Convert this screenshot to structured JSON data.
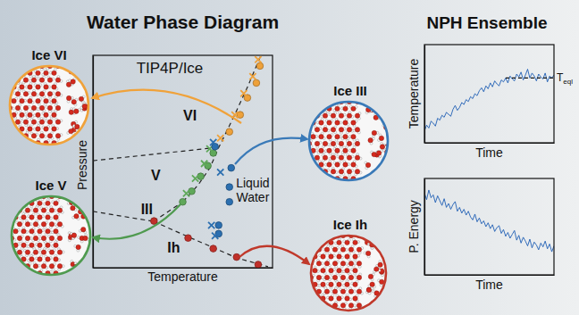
{
  "chart_data": [
    {
      "type": "scatter",
      "title": "Water Phase Diagram",
      "subtitle": "TIP4P/Ice",
      "x_label": "Temperature",
      "y_label": "Pressure",
      "xlim": [
        0,
        100
      ],
      "ylim": [
        0,
        100
      ],
      "xticks": [],
      "yticks": [],
      "tick_labels": false,
      "series": [
        {
          "type": "line",
          "line_style": "dashed",
          "color": "#222222",
          "x": [
            50.2,
            58.7,
            65.2,
            70.1,
            78.6,
            86.6,
            93.5
          ],
          "values": [
            31.1,
            39.1,
            47.1,
            56.7,
            71.4,
            86.1,
            100
          ]
        },
        {
          "type": "line",
          "line_style": "dashed",
          "color": "#222222",
          "x": [
            33.8,
            50.2
          ],
          "values": [
            21.8,
            31.1
          ]
        },
        {
          "type": "line",
          "line_style": "dashed",
          "color": "#222222",
          "x": [
            33.8,
            53.7,
            67.7,
            80.1,
            97.5
          ],
          "values": [
            21.8,
            14.3,
            9.2,
            4.6,
            0.5
          ]
        },
        {
          "type": "line",
          "line_style": "dashed",
          "color": "#222222",
          "x": [
            0,
            70.1
          ],
          "values": [
            50.4,
            56.7
          ]
        },
        {
          "type": "line",
          "line_style": "dashed",
          "color": "#222222",
          "x": [
            0,
            33.8
          ],
          "values": [
            26.5,
            21.8
          ]
        },
        {
          "type": "scatter",
          "marker": "circle",
          "color": "#eea13a",
          "x": [
            93,
            91,
            86,
            82,
            76
          ],
          "values": [
            95,
            87,
            80,
            72,
            64
          ]
        },
        {
          "type": "scatter",
          "marker": "cross",
          "color": "#eea13a",
          "x": [
            92,
            89,
            84,
            79,
            71
          ],
          "values": [
            98,
            90,
            82,
            72,
            61
          ]
        },
        {
          "type": "scatter",
          "marker": "circle",
          "color": "#5fa85a",
          "x": [
            67,
            64,
            60,
            55,
            50
          ],
          "values": [
            54,
            48,
            43,
            36,
            31
          ]
        },
        {
          "type": "scatter",
          "marker": "cross",
          "color": "#5fa85a",
          "x": [
            65,
            62,
            57,
            52
          ],
          "values": [
            56,
            49,
            42,
            35
          ]
        },
        {
          "type": "scatter",
          "marker": "circle",
          "color": "#2b6fb0",
          "x": [
            68,
            77,
            76,
            76,
            70,
            70
          ],
          "values": [
            57,
            47,
            38,
            31,
            20,
            16
          ]
        },
        {
          "type": "scatter",
          "marker": "cross",
          "color": "#2b6fb0",
          "x": [
            67,
            71,
            66,
            68
          ],
          "values": [
            59,
            45,
            20,
            15
          ]
        },
        {
          "type": "scatter",
          "marker": "circle",
          "color": "#c0302a",
          "x": [
            34,
            53,
            67,
            80,
            92
          ],
          "values": [
            22,
            14,
            9,
            5,
            1.5
          ]
        }
      ],
      "region_labels": [
        {
          "text": "VI",
          "x": 54,
          "y": 71
        },
        {
          "text": "V",
          "x": 35,
          "y": 43
        },
        {
          "text": "III",
          "x": 30,
          "y": 27
        },
        {
          "text": "Ih",
          "x": 45,
          "y": 9
        }
      ],
      "annotations": [
        {
          "text": "Liquid Water",
          "x": 89,
          "y": 38
        }
      ],
      "insets": [
        {
          "label": "Ice VI",
          "color": "#f0a23a"
        },
        {
          "label": "Ice V",
          "color": "#4f9a4f"
        },
        {
          "label": "Ice III",
          "color": "#3a7ab8"
        },
        {
          "label": "Ice Ih",
          "color": "#c0392b"
        }
      ]
    },
    {
      "type": "line",
      "title": "NPH Ensemble",
      "x_label": "Time",
      "y_label": "Temperature",
      "xlim": [
        0,
        59
      ],
      "ylim": [
        0,
        100
      ],
      "xticks": [],
      "yticks": [],
      "tick_labels": false,
      "series": [
        {
          "color": "#1f5fb4",
          "x": [
            0,
            1,
            2,
            3,
            4,
            5,
            6,
            7,
            8,
            9,
            10,
            11,
            12,
            13,
            14,
            15,
            16,
            17,
            18,
            19,
            20,
            21,
            22,
            23,
            24,
            25,
            26,
            27,
            28,
            29,
            30,
            31,
            32,
            33,
            34,
            35,
            36,
            37,
            38,
            39,
            40,
            41,
            42,
            43,
            44,
            45,
            46,
            47,
            48,
            49,
            50,
            51,
            52,
            53,
            54,
            55,
            56,
            57,
            58,
            59
          ],
          "values": [
            12,
            18,
            15,
            22,
            20,
            17,
            25,
            23,
            28,
            26,
            31,
            29,
            27,
            34,
            38,
            33,
            36,
            41,
            39,
            44,
            42,
            47,
            45,
            50,
            48,
            53,
            56,
            52,
            58,
            55,
            61,
            57,
            63,
            60,
            58,
            64,
            62,
            66,
            61,
            68,
            65,
            63,
            70,
            67,
            72,
            64,
            69,
            75,
            66,
            71,
            68,
            63,
            70,
            67,
            65,
            71,
            62,
            68,
            66,
            69
          ]
        }
      ],
      "annotations": [
        {
          "text": "T",
          "subscript": "eql",
          "x": 37,
          "y": 66
        }
      ]
    },
    {
      "type": "line",
      "x_label": "Time",
      "y_label": "P. Energy",
      "xlim": [
        0,
        59
      ],
      "ylim": [
        0,
        100
      ],
      "xticks": [],
      "yticks": [],
      "tick_labels": false,
      "series": [
        {
          "color": "#1f5fb4",
          "x": [
            0,
            1,
            2,
            3,
            4,
            5,
            6,
            7,
            8,
            9,
            10,
            11,
            12,
            13,
            14,
            15,
            16,
            17,
            18,
            19,
            20,
            21,
            22,
            23,
            24,
            25,
            26,
            27,
            28,
            29,
            30,
            31,
            32,
            33,
            34,
            35,
            36,
            37,
            38,
            39,
            40,
            41,
            42,
            43,
            44,
            45,
            46,
            47,
            48,
            49,
            50,
            51,
            52,
            53,
            54,
            55,
            56,
            57,
            58,
            59
          ],
          "values": [
            85,
            78,
            88,
            80,
            83,
            75,
            82,
            77,
            72,
            79,
            70,
            74,
            68,
            73,
            76,
            66,
            70,
            64,
            68,
            62,
            66,
            60,
            57,
            63,
            55,
            59,
            53,
            56,
            50,
            54,
            48,
            52,
            45,
            49,
            51,
            43,
            47,
            40,
            44,
            38,
            42,
            46,
            36,
            41,
            33,
            39,
            35,
            30,
            37,
            28,
            34,
            31,
            26,
            33,
            29,
            35,
            27,
            32,
            24,
            30
          ]
        }
      ]
    }
  ]
}
